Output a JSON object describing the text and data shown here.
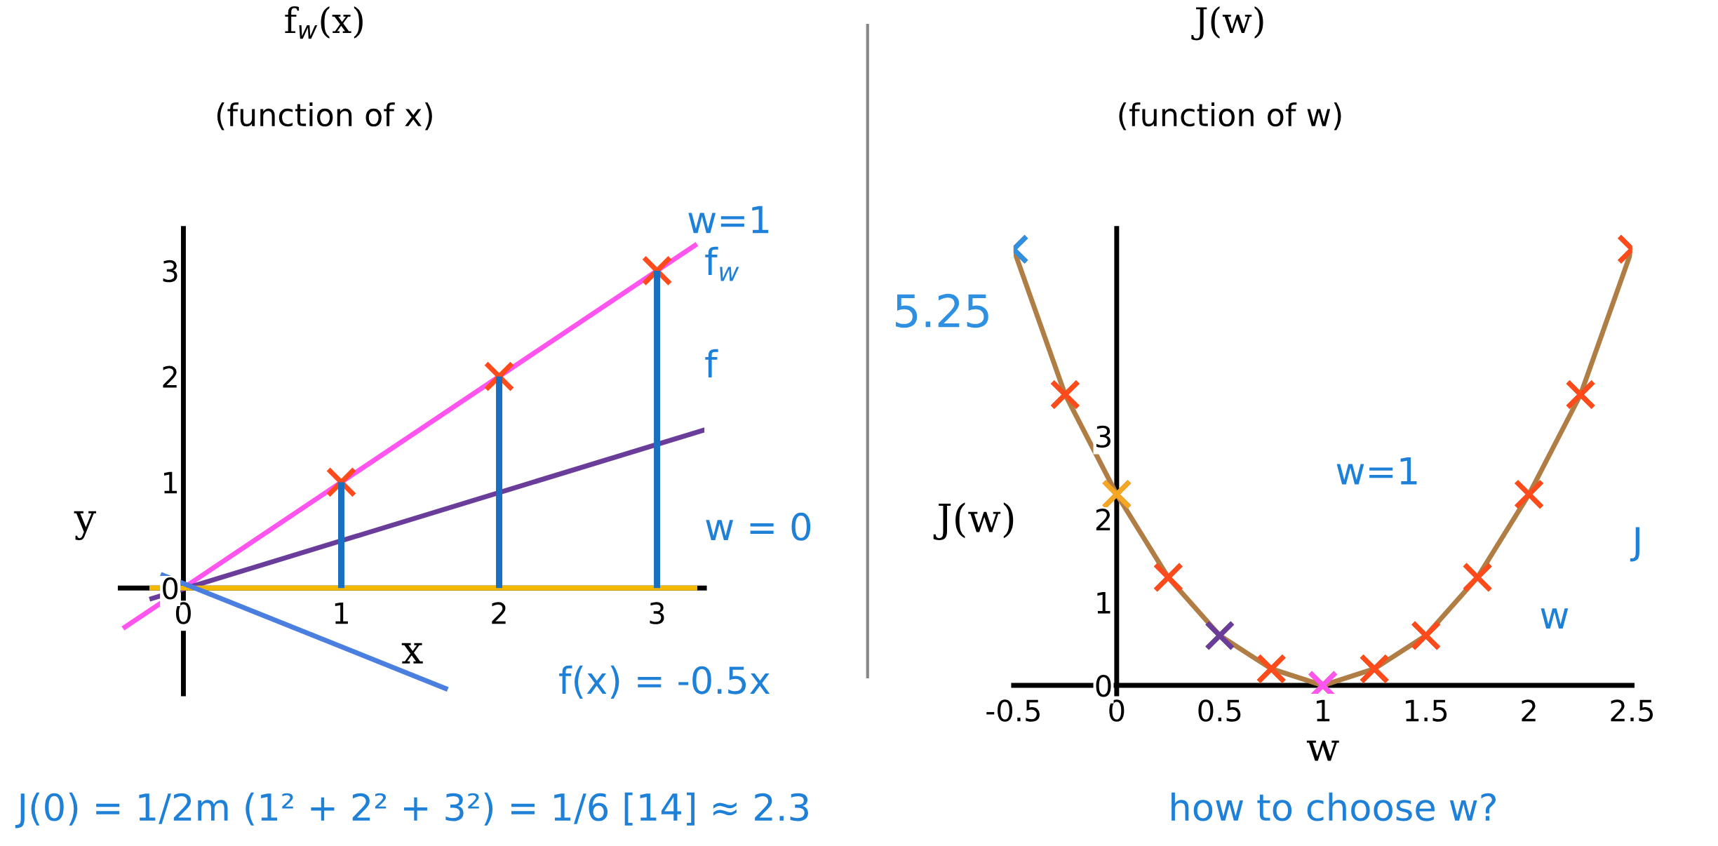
{
  "chart_data": [
    {
      "type": "line",
      "title": "f$_{w}$(x)",
      "subtitle": "(function of x)",
      "xlabel": "x",
      "ylabel": "y",
      "xlim": [
        -0.4,
        3.3
      ],
      "ylim": [
        -1.0,
        3.4
      ],
      "xticks": [
        0,
        1,
        2,
        3
      ],
      "yticks": [
        0,
        1,
        2,
        3
      ],
      "grid": false,
      "legend": false,
      "series": [
        {
          "type": "bar",
          "color": "#1a6fc0",
          "x": [
            1,
            2,
            3
          ],
          "values": [
            1,
            2,
            3
          ]
        },
        {
          "color": "#ff55ee",
          "x": [
            -0.37,
            3.24
          ],
          "values": [
            -0.37,
            3.24
          ]
        },
        {
          "color": "#6a3d9a",
          "x": [
            -0.2,
            3.29
          ],
          "values": [
            -0.1,
            1.49
          ]
        },
        {
          "color": "#f5b800",
          "x": [
            -0.2,
            3.24
          ],
          "values": [
            0,
            0
          ]
        },
        {
          "color": "#4a7fe0",
          "x": [
            -0.13,
            1.66
          ],
          "values": [
            0.12,
            -0.95
          ]
        },
        {
          "type": "scatter",
          "color": "#ff4a1c",
          "marker": "cross",
          "x": [
            1,
            2,
            3
          ],
          "values": [
            1,
            2,
            3
          ]
        }
      ],
      "annotations": [
        "w=1",
        "f$_{w}$",
        "f",
        "w = 0",
        "f(x) = -0.5x",
        "J(0) = 1/2m (1² + 2² + 3²) = 1/6 [14] ≈ 2.3"
      ]
    },
    {
      "type": "line",
      "title": "J(w)",
      "subtitle": "(function of w)",
      "xlabel": "w",
      "ylabel": "J(w)",
      "xlim": [
        -0.5,
        2.5
      ],
      "ylim": [
        -0.1,
        5.5
      ],
      "xticks": [
        -0.5,
        0,
        0.5,
        1,
        1.5,
        2,
        2.5
      ],
      "yticks": [
        0,
        1,
        2,
        3
      ],
      "grid": false,
      "legend": false,
      "series": [
        {
          "color": "#b07d45",
          "marker": "cross",
          "colors": [
            "#2f8fe0",
            "#ff4a1c",
            "#f5a623",
            "#ff4a1c",
            "#6a3d9a",
            "#ff4a1c",
            "#ff55ee",
            "#ff4a1c",
            "#ff4a1c",
            "#ff4a1c",
            "#ff4a1c",
            "#ff4a1c",
            "#ff4a1c"
          ],
          "x": [
            -0.5,
            -0.25,
            0,
            0.25,
            0.5,
            0.75,
            1,
            1.25,
            1.5,
            1.75,
            2,
            2.25,
            2.5
          ],
          "values": [
            5.25,
            3.5,
            2.3,
            1.3,
            0.6,
            0.2,
            0,
            0.2,
            0.6,
            1.3,
            2.3,
            3.5,
            5.25
          ],
          "value_labels": [
            "5.25",
            null,
            null,
            null,
            null,
            null,
            null,
            null,
            null,
            null,
            null,
            null,
            null
          ]
        }
      ],
      "annotations": [
        "w=1",
        "J",
        "w",
        "how to choose w?"
      ]
    }
  ]
}
